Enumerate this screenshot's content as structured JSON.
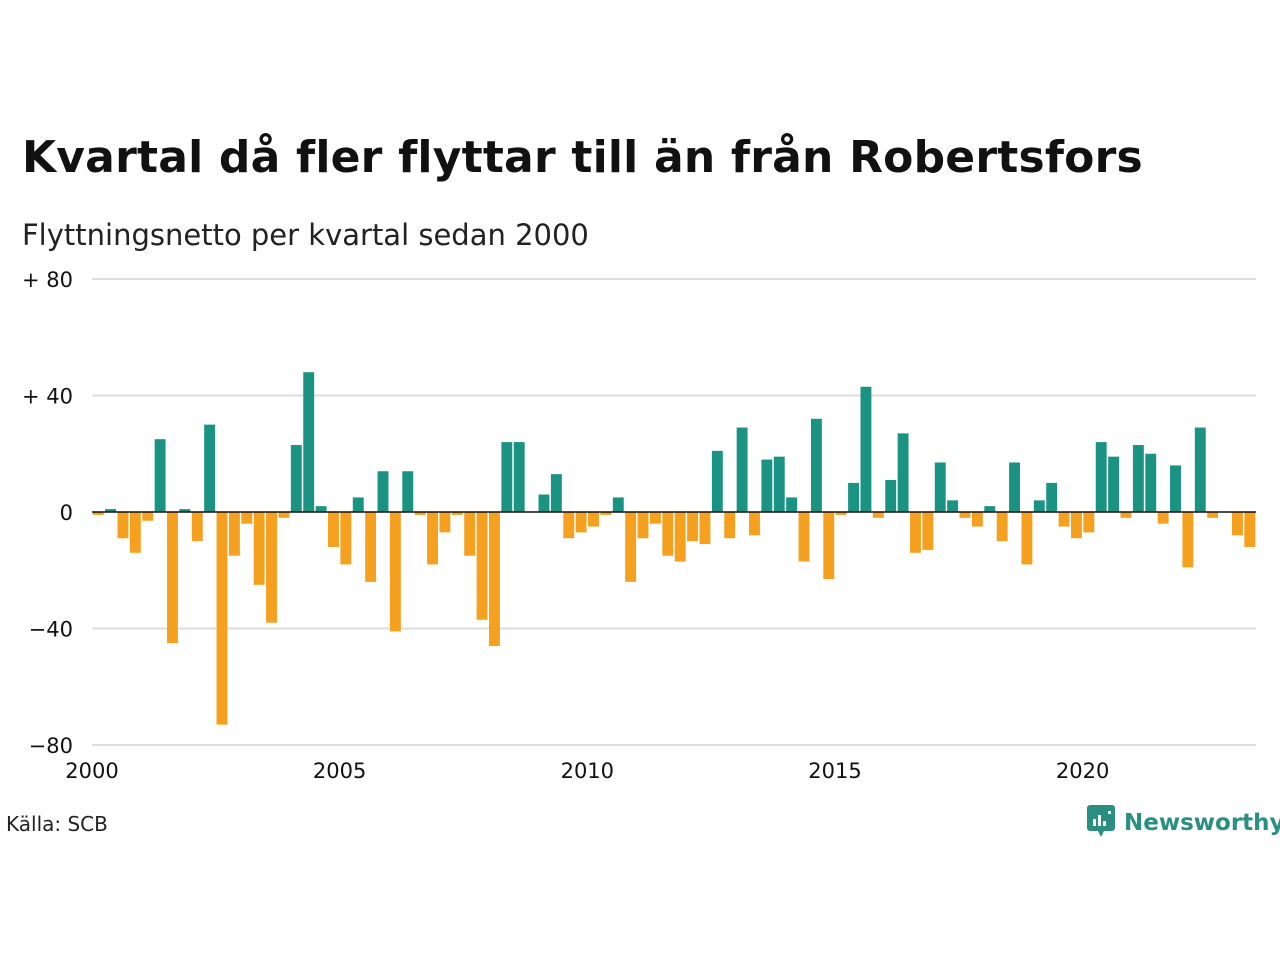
{
  "title": "Kvartal då fler flyttar till än från Robertsfors",
  "subtitle": "Flyttningsnetto per kvartal sedan 2000",
  "source": "Källa: SCB",
  "brand": {
    "name": "Newsworthy",
    "icon": "newsworthy-logo-icon"
  },
  "colors": {
    "positive": "#1a9383",
    "negative": "#f5a01f",
    "grid": "#dddddd",
    "zero_line": "#111111",
    "brand": "#2a8f80"
  },
  "chart_data": {
    "type": "bar",
    "title": "Kvartal då fler flyttar till än från Robertsfors",
    "subtitle": "Flyttningsnetto per kvartal sedan 2000",
    "xlabel": "",
    "ylabel": "",
    "x_start": 2000,
    "x_end": 2023.5,
    "xticks": [
      2000,
      2005,
      2010,
      2015,
      2020
    ],
    "xtick_labels": [
      "2000",
      "2005",
      "2010",
      "2015",
      "2020"
    ],
    "ylim": [
      -80,
      80
    ],
    "yticks": [
      80,
      40,
      0,
      -40,
      -80
    ],
    "ytick_labels": [
      "+ 80",
      "+ 40",
      "0",
      "−40",
      "−80"
    ],
    "grid": true,
    "categories": [
      "2000 K1",
      "2000 K2",
      "2000 K3",
      "2000 K4",
      "2001 K1",
      "2001 K2",
      "2001 K3",
      "2001 K4",
      "2002 K1",
      "2002 K2",
      "2002 K3",
      "2002 K4",
      "2003 K1",
      "2003 K2",
      "2003 K3",
      "2003 K4",
      "2004 K1",
      "2004 K2",
      "2004 K3",
      "2004 K4",
      "2005 K1",
      "2005 K2",
      "2005 K3",
      "2005 K4",
      "2006 K1",
      "2006 K2",
      "2006 K3",
      "2006 K4",
      "2007 K1",
      "2007 K2",
      "2007 K3",
      "2007 K4",
      "2008 K1",
      "2008 K2",
      "2008 K3",
      "2008 K4",
      "2009 K1",
      "2009 K2",
      "2009 K3",
      "2009 K4",
      "2010 K1",
      "2010 K2",
      "2010 K3",
      "2010 K4",
      "2011 K1",
      "2011 K2",
      "2011 K3",
      "2011 K4",
      "2012 K1",
      "2012 K2",
      "2012 K3",
      "2012 K4",
      "2013 K1",
      "2013 K2",
      "2013 K3",
      "2013 K4",
      "2014 K1",
      "2014 K2",
      "2014 K3",
      "2014 K4",
      "2015 K1",
      "2015 K2",
      "2015 K3",
      "2015 K4",
      "2016 K1",
      "2016 K2",
      "2016 K3",
      "2016 K4",
      "2017 K1",
      "2017 K2",
      "2017 K3",
      "2017 K4",
      "2018 K1",
      "2018 K2",
      "2018 K3",
      "2018 K4",
      "2019 K1",
      "2019 K2",
      "2019 K3",
      "2019 K4",
      "2020 K1",
      "2020 K2",
      "2020 K3",
      "2020 K4",
      "2021 K1",
      "2021 K2",
      "2021 K3",
      "2021 K4",
      "2022 K1",
      "2022 K2",
      "2022 K3",
      "2022 K4",
      "2023 K1",
      "2023 K2"
    ],
    "values": [
      -1,
      1,
      -9,
      -14,
      -3,
      25,
      -45,
      1,
      -10,
      30,
      -73,
      -15,
      -4,
      -25,
      -38,
      -2,
      23,
      48,
      2,
      -12,
      -18,
      5,
      -24,
      14,
      -41,
      14,
      -1,
      -18,
      -7,
      -1,
      -15,
      -37,
      -46,
      24,
      24,
      0,
      6,
      13,
      -9,
      -7,
      -5,
      -1,
      5,
      -24,
      -9,
      -4,
      -15,
      -17,
      -10,
      -11,
      21,
      -9,
      29,
      -8,
      18,
      19,
      5,
      -17,
      32,
      -23,
      -1,
      10,
      43,
      -2,
      11,
      27,
      -14,
      -13,
      17,
      4,
      -2,
      -5,
      2,
      -10,
      17,
      -18,
      4,
      10,
      -5,
      -9,
      -7,
      24,
      19,
      -2,
      23,
      20,
      -4,
      16,
      -19,
      29,
      -2,
      0,
      -8,
      -12
    ]
  }
}
